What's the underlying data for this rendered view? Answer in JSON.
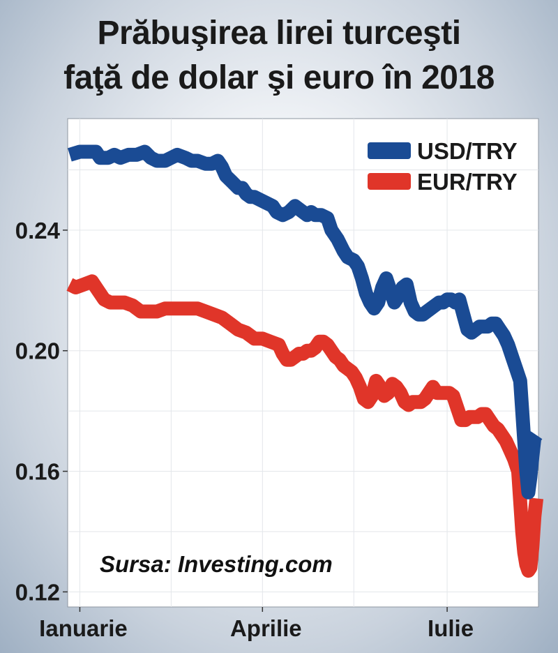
{
  "title_line1": "Prăbuşirea lirei turceşti",
  "title_line2": "faţă de dolar şi euro în 2018",
  "chart_data": {
    "type": "line",
    "title": "Prăbuşirea lirei turceşti faţă de dolar şi euro în 2018",
    "xlabel": "",
    "ylabel": "",
    "ylim": [
      0.115,
      0.277
    ],
    "xlim": [
      -6,
      226
    ],
    "x_ticks": [
      {
        "label": "Ianuarie",
        "value": 0
      },
      {
        "label": "Aprilie",
        "value": 90
      },
      {
        "label": "Iulie",
        "value": 181
      }
    ],
    "y_ticks": [
      "0.24",
      "0.20",
      "0.16",
      "0.12"
    ],
    "grid": true,
    "legend_position": "top-right",
    "annotation": "Sursa: Investing.com",
    "series": [
      {
        "name": "USD/TRY",
        "color": "#1a4b94",
        "points": [
          [
            -5,
            0.265
          ],
          [
            0,
            0.266
          ],
          [
            4,
            0.266
          ],
          [
            8,
            0.266
          ],
          [
            10,
            0.264
          ],
          [
            14,
            0.264
          ],
          [
            17,
            0.265
          ],
          [
            20,
            0.264
          ],
          [
            24,
            0.265
          ],
          [
            28,
            0.265
          ],
          [
            32,
            0.266
          ],
          [
            35,
            0.264
          ],
          [
            38,
            0.263
          ],
          [
            42,
            0.263
          ],
          [
            45,
            0.264
          ],
          [
            48,
            0.265
          ],
          [
            52,
            0.264
          ],
          [
            55,
            0.263
          ],
          [
            58,
            0.263
          ],
          [
            62,
            0.262
          ],
          [
            65,
            0.262
          ],
          [
            68,
            0.263
          ],
          [
            70,
            0.261
          ],
          [
            72,
            0.258
          ],
          [
            75,
            0.256
          ],
          [
            78,
            0.254
          ],
          [
            80,
            0.254
          ],
          [
            82,
            0.252
          ],
          [
            84,
            0.251
          ],
          [
            86,
            0.251
          ],
          [
            89,
            0.25
          ],
          [
            92,
            0.249
          ],
          [
            95,
            0.248
          ],
          [
            97,
            0.246
          ],
          [
            100,
            0.245
          ],
          [
            103,
            0.246
          ],
          [
            106,
            0.248
          ],
          [
            108,
            0.247
          ],
          [
            110,
            0.246
          ],
          [
            112,
            0.245
          ],
          [
            114,
            0.246
          ],
          [
            116,
            0.245
          ],
          [
            119,
            0.245
          ],
          [
            122,
            0.244
          ],
          [
            124,
            0.24
          ],
          [
            127,
            0.237
          ],
          [
            130,
            0.233
          ],
          [
            132,
            0.231
          ],
          [
            135,
            0.23
          ],
          [
            137,
            0.228
          ],
          [
            139,
            0.224
          ],
          [
            141,
            0.219
          ],
          [
            143,
            0.216
          ],
          [
            145,
            0.214
          ],
          [
            147,
            0.216
          ],
          [
            149,
            0.221
          ],
          [
            151,
            0.224
          ],
          [
            153,
            0.22
          ],
          [
            155,
            0.216
          ],
          [
            157,
            0.218
          ],
          [
            159,
            0.221
          ],
          [
            161,
            0.222
          ],
          [
            163,
            0.216
          ],
          [
            165,
            0.213
          ],
          [
            167,
            0.212
          ],
          [
            169,
            0.212
          ],
          [
            171,
            0.213
          ],
          [
            173,
            0.214
          ],
          [
            175,
            0.215
          ],
          [
            177,
            0.216
          ],
          [
            179,
            0.216
          ],
          [
            181,
            0.217
          ],
          [
            183,
            0.217
          ],
          [
            185,
            0.216
          ],
          [
            187,
            0.217
          ],
          [
            189,
            0.212
          ],
          [
            191,
            0.207
          ],
          [
            193,
            0.206
          ],
          [
            195,
            0.207
          ],
          [
            197,
            0.208
          ],
          [
            199,
            0.208
          ],
          [
            201,
            0.208
          ],
          [
            203,
            0.209
          ],
          [
            205,
            0.209
          ],
          [
            207,
            0.207
          ],
          [
            209,
            0.205
          ],
          [
            211,
            0.202
          ],
          [
            213,
            0.198
          ],
          [
            215,
            0.194
          ],
          [
            217,
            0.19
          ],
          [
            218,
            0.18
          ],
          [
            219,
            0.17
          ],
          [
            220,
            0.16
          ],
          [
            221,
            0.153
          ],
          [
            222,
            0.158
          ],
          [
            223,
            0.165
          ],
          [
            224,
            0.171
          ],
          [
            225,
            0.172
          ]
        ]
      },
      {
        "name": "EUR/TRY",
        "color": "#e03529",
        "points": [
          [
            -5,
            0.222
          ],
          [
            -2,
            0.221
          ],
          [
            2,
            0.222
          ],
          [
            6,
            0.223
          ],
          [
            9,
            0.22
          ],
          [
            12,
            0.217
          ],
          [
            15,
            0.216
          ],
          [
            18,
            0.216
          ],
          [
            22,
            0.216
          ],
          [
            26,
            0.215
          ],
          [
            30,
            0.213
          ],
          [
            34,
            0.213
          ],
          [
            38,
            0.213
          ],
          [
            42,
            0.214
          ],
          [
            46,
            0.214
          ],
          [
            50,
            0.214
          ],
          [
            54,
            0.214
          ],
          [
            58,
            0.214
          ],
          [
            62,
            0.213
          ],
          [
            66,
            0.212
          ],
          [
            70,
            0.211
          ],
          [
            74,
            0.209
          ],
          [
            78,
            0.207
          ],
          [
            82,
            0.206
          ],
          [
            86,
            0.204
          ],
          [
            90,
            0.204
          ],
          [
            94,
            0.203
          ],
          [
            98,
            0.202
          ],
          [
            100,
            0.199
          ],
          [
            102,
            0.197
          ],
          [
            104,
            0.197
          ],
          [
            106,
            0.198
          ],
          [
            108,
            0.199
          ],
          [
            110,
            0.199
          ],
          [
            112,
            0.2
          ],
          [
            114,
            0.2
          ],
          [
            116,
            0.201
          ],
          [
            118,
            0.203
          ],
          [
            120,
            0.203
          ],
          [
            122,
            0.202
          ],
          [
            124,
            0.2
          ],
          [
            126,
            0.198
          ],
          [
            128,
            0.197
          ],
          [
            130,
            0.195
          ],
          [
            132,
            0.194
          ],
          [
            134,
            0.193
          ],
          [
            136,
            0.191
          ],
          [
            138,
            0.188
          ],
          [
            140,
            0.184
          ],
          [
            142,
            0.183
          ],
          [
            144,
            0.185
          ],
          [
            146,
            0.19
          ],
          [
            148,
            0.188
          ],
          [
            150,
            0.185
          ],
          [
            152,
            0.186
          ],
          [
            154,
            0.189
          ],
          [
            156,
            0.188
          ],
          [
            158,
            0.186
          ],
          [
            160,
            0.183
          ],
          [
            162,
            0.182
          ],
          [
            164,
            0.183
          ],
          [
            166,
            0.183
          ],
          [
            168,
            0.183
          ],
          [
            170,
            0.184
          ],
          [
            172,
            0.186
          ],
          [
            174,
            0.188
          ],
          [
            176,
            0.186
          ],
          [
            178,
            0.186
          ],
          [
            180,
            0.186
          ],
          [
            182,
            0.186
          ],
          [
            184,
            0.185
          ],
          [
            186,
            0.181
          ],
          [
            188,
            0.177
          ],
          [
            190,
            0.177
          ],
          [
            192,
            0.178
          ],
          [
            194,
            0.178
          ],
          [
            196,
            0.178
          ],
          [
            198,
            0.179
          ],
          [
            200,
            0.179
          ],
          [
            202,
            0.177
          ],
          [
            204,
            0.175
          ],
          [
            206,
            0.174
          ],
          [
            208,
            0.172
          ],
          [
            210,
            0.17
          ],
          [
            212,
            0.167
          ],
          [
            214,
            0.164
          ],
          [
            216,
            0.16
          ],
          [
            217,
            0.15
          ],
          [
            218,
            0.14
          ],
          [
            219,
            0.133
          ],
          [
            220,
            0.129
          ],
          [
            221,
            0.127
          ],
          [
            222,
            0.128
          ],
          [
            223,
            0.135
          ],
          [
            224,
            0.145
          ],
          [
            225,
            0.151
          ]
        ]
      }
    ]
  }
}
